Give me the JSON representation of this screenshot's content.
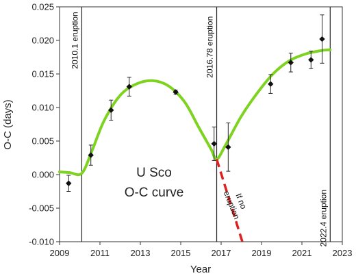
{
  "chart_data": {
    "type": "scatter",
    "xlabel": "Year",
    "ylabel": "O-C (days)",
    "xlim": [
      2009,
      2023
    ],
    "ylim": [
      -0.01,
      0.025
    ],
    "xticks": [
      "2009",
      "2011",
      "2013",
      "2015",
      "2017",
      "2019",
      "2021",
      "2023"
    ],
    "yticks": [
      "-0.010",
      "-0.005",
      "0.000",
      "0.005",
      "0.010",
      "0.015",
      "0.020",
      "0.025"
    ],
    "series": [
      {
        "points": [
          {
            "x": 2009.45,
            "y": -0.0013,
            "err": 0.0012
          },
          {
            "x": 2010.55,
            "y": 0.0029,
            "err": 0.0015
          },
          {
            "x": 2011.55,
            "y": 0.0096,
            "err": 0.0015
          },
          {
            "x": 2012.45,
            "y": 0.0131,
            "err": 0.0014
          },
          {
            "x": 2014.75,
            "y": 0.0123,
            "err": 0.0003
          },
          {
            "x": 2016.65,
            "y": 0.0046,
            "err": 0.0025
          },
          {
            "x": 2017.35,
            "y": 0.0041,
            "err": 0.0036
          },
          {
            "x": 2019.45,
            "y": 0.0135,
            "err": 0.0014
          },
          {
            "x": 2020.45,
            "y": 0.0167,
            "err": 0.0014
          },
          {
            "x": 2021.45,
            "y": 0.0171,
            "err": 0.0013
          },
          {
            "x": 2022.0,
            "y": 0.0202,
            "err": 0.0036
          }
        ]
      }
    ],
    "fit_curve": {
      "color": "#7ed321",
      "points": [
        [
          2009.0,
          0.0004
        ],
        [
          2009.5,
          0.0003
        ],
        [
          2010.1,
          0.0002
        ],
        [
          2010.6,
          0.0035
        ],
        [
          2011.2,
          0.008
        ],
        [
          2012.0,
          0.0118
        ],
        [
          2012.8,
          0.0135
        ],
        [
          2013.6,
          0.014
        ],
        [
          2014.4,
          0.0132
        ],
        [
          2015.2,
          0.0108
        ],
        [
          2015.9,
          0.007
        ],
        [
          2016.5,
          0.0038
        ],
        [
          2016.78,
          0.0023
        ],
        [
          2017.2,
          0.0043
        ],
        [
          2018.0,
          0.0087
        ],
        [
          2018.8,
          0.0122
        ],
        [
          2019.6,
          0.0151
        ],
        [
          2020.4,
          0.017
        ],
        [
          2021.2,
          0.018
        ],
        [
          2022.0,
          0.0185
        ],
        [
          2022.4,
          0.0186
        ]
      ]
    },
    "no_eruption_line": {
      "color": "#e02020",
      "from": [
        2016.78,
        0.0023
      ],
      "to": [
        2018.05,
        -0.01
      ]
    },
    "eruptions": [
      {
        "x": 2010.1,
        "label": "2010.1 eruption",
        "label_y": 0.02
      },
      {
        "x": 2016.78,
        "label": "2016.78 eruption",
        "label_y": 0.019
      },
      {
        "x": 2022.4,
        "label": "2022.4 eruption",
        "label_y": -0.0065
      }
    ],
    "annotations": {
      "center_line1": "U Sco",
      "center_line2": "O-C curve",
      "red_line1": "If no",
      "red_line2": "eruption"
    },
    "grid": false
  }
}
